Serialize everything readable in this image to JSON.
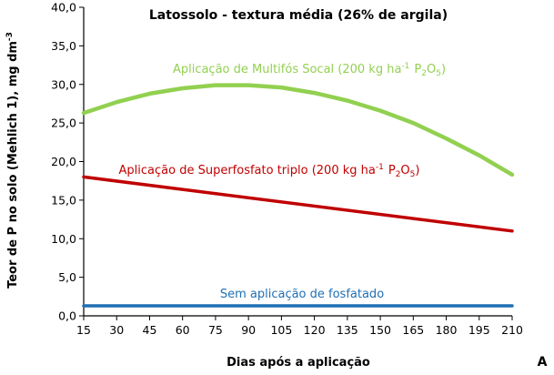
{
  "chart_data": {
    "type": "line",
    "title": "Latossolo - textura média (26% de argila)",
    "xlabel": "Dias após a aplicação",
    "ylabel": "Teor de P no solo (Mehlich 1), mg dm",
    "ylabel_sup": "-3",
    "panel_label": "A",
    "x_ticks": [
      "15",
      "30",
      "45",
      "60",
      "75",
      "90",
      "105",
      "120",
      "135",
      "150",
      "165",
      "180",
      "195",
      "210"
    ],
    "y_ticks": [
      "0,0",
      "5,0",
      "10,0",
      "15,0",
      "20,0",
      "25,0",
      "30,0",
      "35,0",
      "40,0"
    ],
    "xlim": [
      15,
      210
    ],
    "ylim": [
      0,
      40
    ],
    "grid": false,
    "series": [
      {
        "label_main": "Aplicação de Multifós Socal (200 kg ha",
        "label_sup": "-1",
        "label_p": "P",
        "label_sub2": "2",
        "label_o": "O",
        "label_sub5": "5",
        "label_close": ")",
        "color": "#92d050",
        "x": [
          15,
          30,
          45,
          60,
          75,
          90,
          105,
          120,
          135,
          150,
          165,
          180,
          195,
          210
        ],
        "y": [
          26.3,
          27.7,
          28.8,
          29.5,
          29.9,
          29.9,
          29.6,
          28.9,
          27.9,
          26.6,
          25.0,
          23.0,
          20.8,
          18.3
        ]
      },
      {
        "label_main": "Aplicação de Superfosfato triplo (200 kg ha",
        "label_sup": "-1",
        "label_p": "P",
        "label_sub2": "2",
        "label_o": "O",
        "label_sub5": "5",
        "label_close": ")",
        "color": "#c00000",
        "x": [
          15,
          210
        ],
        "y": [
          18.0,
          11.0
        ]
      },
      {
        "label_main": "Sem aplicação de fosfatado",
        "color": "#1f6fb4",
        "x": [
          15,
          210
        ],
        "y": [
          1.3,
          1.3
        ]
      }
    ]
  }
}
